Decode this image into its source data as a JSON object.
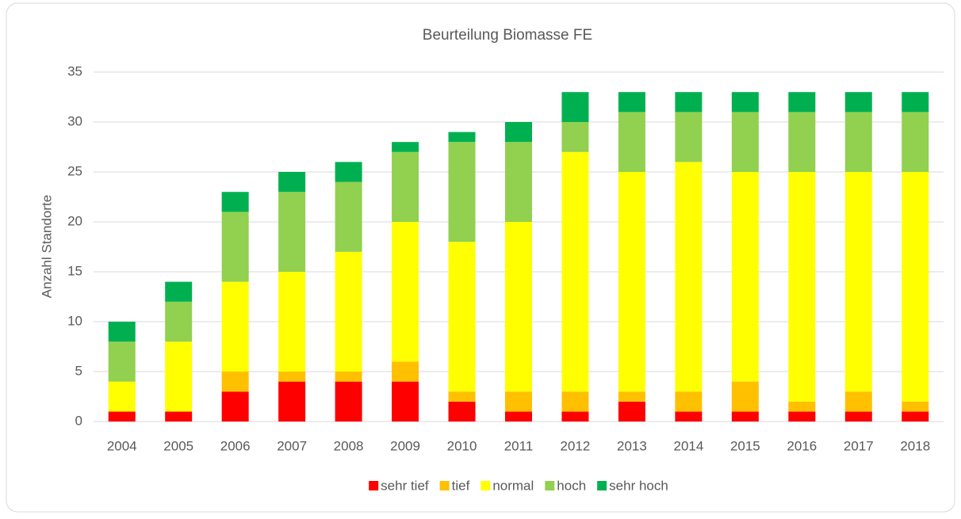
{
  "chart_data": {
    "type": "bar",
    "stacked": true,
    "title": "Beurteilung Biomasse FE",
    "ylabel": "Anzahl Standorte",
    "categories": [
      "2004",
      "2005",
      "2006",
      "2007",
      "2008",
      "2009",
      "2010",
      "2011",
      "2012",
      "2013",
      "2014",
      "2015",
      "2016",
      "2017",
      "2018"
    ],
    "series": [
      {
        "name": "sehr tief",
        "color": "#ff0000",
        "values": [
          1,
          1,
          3,
          4,
          4,
          4,
          2,
          1,
          1,
          2,
          1,
          1,
          1,
          1,
          1
        ]
      },
      {
        "name": "tief",
        "color": "#ffc000",
        "values": [
          0,
          0,
          2,
          1,
          1,
          2,
          1,
          2,
          2,
          1,
          2,
          3,
          1,
          2,
          1
        ]
      },
      {
        "name": "normal",
        "color": "#ffff00",
        "values": [
          3,
          7,
          9,
          10,
          12,
          14,
          15,
          17,
          24,
          22,
          23,
          21,
          23,
          22,
          23
        ]
      },
      {
        "name": "hoch",
        "color": "#92d050",
        "values": [
          4,
          4,
          7,
          8,
          7,
          7,
          10,
          8,
          3,
          6,
          5,
          6,
          6,
          6,
          6
        ]
      },
      {
        "name": "sehr hoch",
        "color": "#00b050",
        "values": [
          2,
          2,
          2,
          2,
          2,
          1,
          1,
          2,
          3,
          2,
          2,
          2,
          2,
          2,
          2
        ]
      }
    ],
    "ylim": [
      0,
      35
    ],
    "yticks": [
      0,
      5,
      10,
      15,
      20,
      25,
      30,
      35
    ],
    "grid": true,
    "legend": "bottom"
  }
}
